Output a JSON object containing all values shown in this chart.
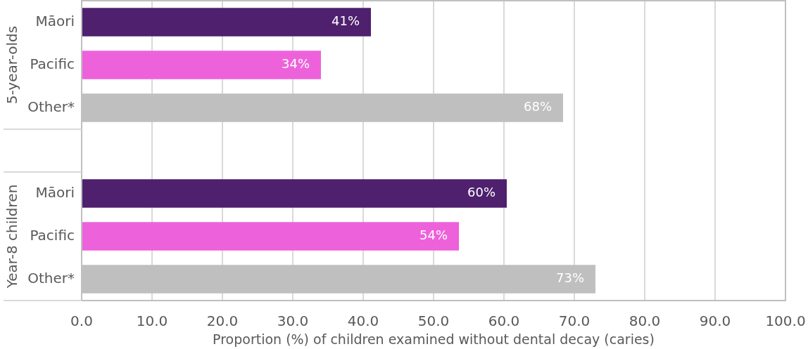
{
  "chart_data": {
    "type": "bar",
    "orientation": "horizontal",
    "categories": [
      "Māori",
      "Pacific",
      "Other*",
      null,
      "Māori",
      "Pacific",
      "Other*"
    ],
    "values": [
      41.1,
      34.0,
      68.4,
      null,
      60.4,
      53.6,
      73.0
    ],
    "colors": [
      "#4e206e",
      "#ed62da",
      "#bfbfbf",
      null,
      "#4e206e",
      "#ed62da",
      "#bfbfbf"
    ],
    "value_labels": [
      "41%",
      "34%",
      "68%",
      null,
      "60%",
      "54%",
      "73%"
    ],
    "xlim": [
      0,
      100
    ],
    "xticks": [
      {
        "value": 0,
        "label": "0.0"
      },
      {
        "value": 10,
        "label": "10.0"
      },
      {
        "value": 20,
        "label": "20.0"
      },
      {
        "value": 30,
        "label": "30.0"
      },
      {
        "value": 40,
        "label": "40.0"
      },
      {
        "value": 50,
        "label": "50.0"
      },
      {
        "value": 60,
        "label": "60.0"
      },
      {
        "value": 70,
        "label": "70.0"
      },
      {
        "value": 80,
        "label": "80.0"
      },
      {
        "value": 90,
        "label": "90.0"
      },
      {
        "value": 100,
        "label": "100.0"
      }
    ],
    "xlabel": "Proportion (%) of children examined without dental decay (caries)",
    "annotations": [
      "5-year-olds",
      "Year-8 children"
    ],
    "grid": "x",
    "legend": false
  }
}
